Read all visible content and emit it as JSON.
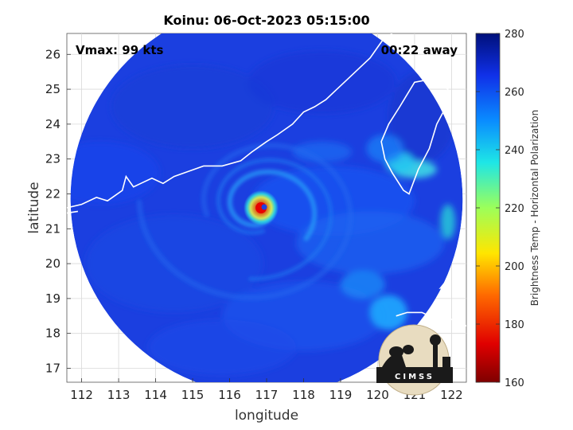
{
  "chart_data": {
    "type": "heatmap",
    "title": "Koinu: 06-Oct-2023 05:15:00",
    "xlabel": "longitude",
    "ylabel": "latitude",
    "xlim": [
      111.6,
      122.4
    ],
    "ylim": [
      16.6,
      26.6
    ],
    "x_ticks": [
      112,
      113,
      114,
      115,
      116,
      117,
      118,
      119,
      120,
      121,
      122
    ],
    "y_ticks": [
      17,
      18,
      19,
      20,
      21,
      22,
      23,
      24,
      25,
      26
    ],
    "grid": true,
    "annotations": {
      "vmax": "Vmax: 99 kts",
      "time_away": "00:22 away"
    },
    "storm_center": {
      "lon": 116.85,
      "lat": 21.6
    },
    "colorbar": {
      "label": "Brightness Temp - Horizontal Polarization",
      "range": [
        160,
        280
      ],
      "ticks": [
        160,
        180,
        200,
        220,
        240,
        260,
        280
      ]
    },
    "swath": {
      "center_lon": 117.0,
      "center_lat": 21.85,
      "radius_deg": 5.3
    }
  },
  "logo": {
    "text": "CIMSS"
  },
  "colors": {
    "background_field": "#1b3fe0",
    "coastline": "#ffffff",
    "grid": "#d9d9d9"
  }
}
